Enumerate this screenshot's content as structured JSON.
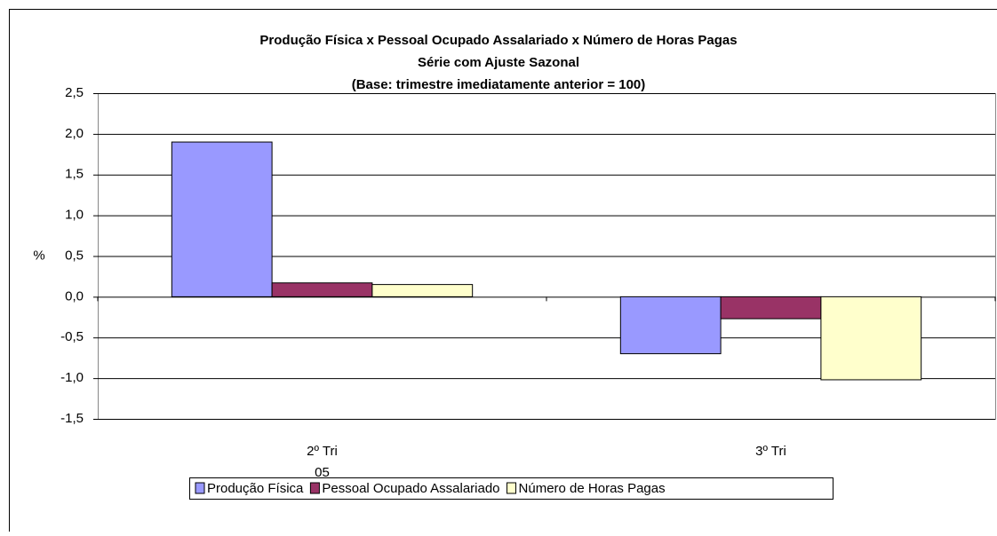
{
  "chart_data": {
    "type": "bar",
    "title": [
      "Produção Física x Pessoal Ocupado Assalariado x Número de Horas Pagas",
      "Série com Ajuste Sazonal",
      "(Base: trimestre imediatamente anterior = 100)"
    ],
    "ylabel": "%",
    "categories": [
      "2º Tri\n05",
      "3º Tri"
    ],
    "series": [
      {
        "name": "Produção Física",
        "color": "#9999ff",
        "values": [
          1.9,
          -0.7
        ]
      },
      {
        "name": "Pessoal Ocupado Assalariado",
        "color": "#993366",
        "values": [
          0.17,
          -0.27
        ]
      },
      {
        "name": "Número de Horas Pagas",
        "color": "#ffffcc",
        "values": [
          0.15,
          -1.02
        ]
      }
    ],
    "ylim": [
      -1.5,
      2.5
    ],
    "yticks": [
      {
        "value": -1.5,
        "label": "-1,5"
      },
      {
        "value": -1.0,
        "label": "-1,0"
      },
      {
        "value": -0.5,
        "label": "-0,5"
      },
      {
        "value": 0.0,
        "label": "0,0"
      },
      {
        "value": 0.5,
        "label": "0,5"
      },
      {
        "value": 1.0,
        "label": "1,0"
      },
      {
        "value": 1.5,
        "label": "1,5"
      },
      {
        "value": 2.0,
        "label": "2,0"
      },
      {
        "value": 2.5,
        "label": "2,5"
      }
    ],
    "grid": true,
    "legend": "bottom"
  }
}
